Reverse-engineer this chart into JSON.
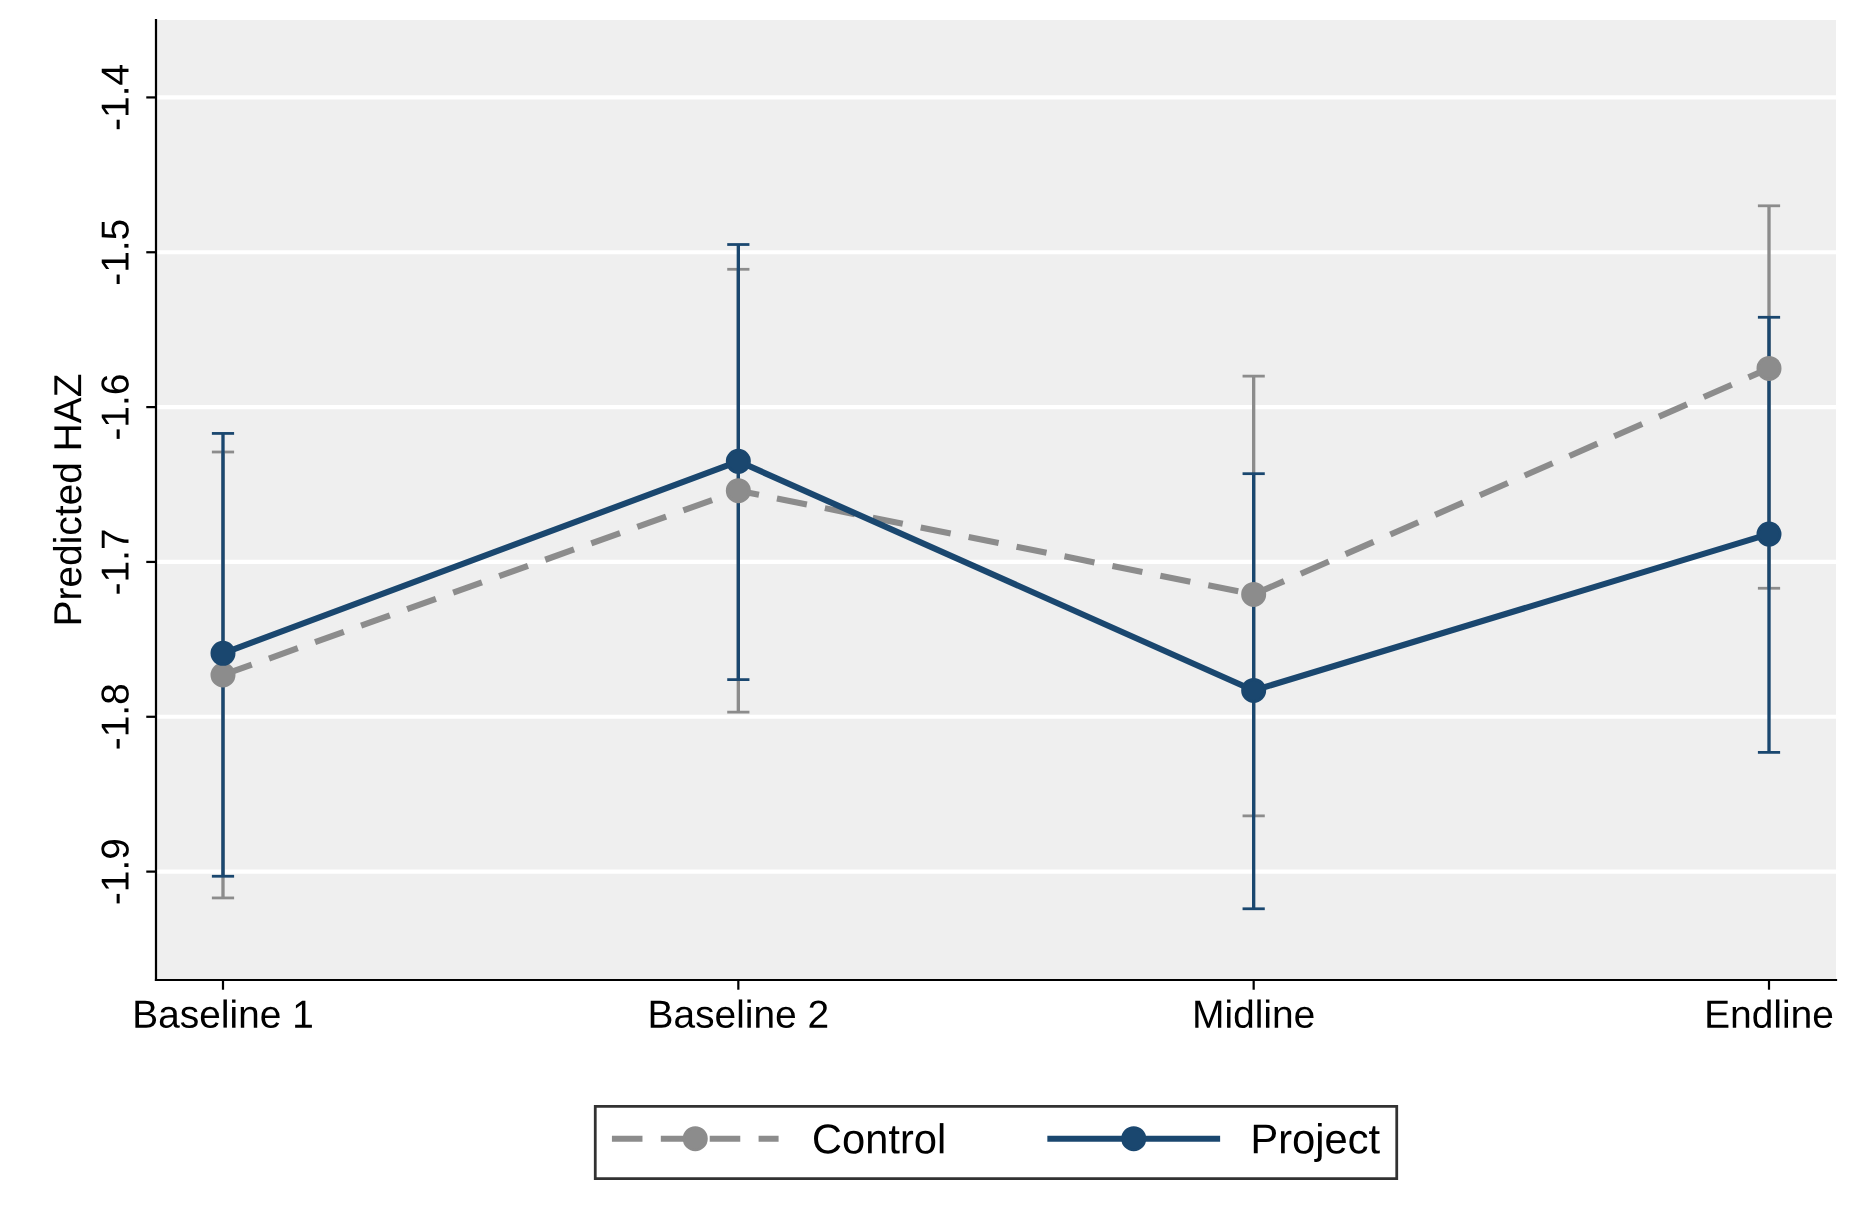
{
  "chart_data": {
    "type": "line",
    "ylabel": "Predicted HAZ",
    "categories": [
      "Baseline 1",
      "Baseline 2",
      "Midline",
      "Endline"
    ],
    "series": [
      {
        "name": "Control",
        "color": "#8c8c8c",
        "line_style": "dashed",
        "values": [
          -1.773,
          -1.654,
          -1.721,
          -1.575
        ],
        "errors": [
          [
            -1.917,
            -1.629
          ],
          [
            -1.797,
            -1.511
          ],
          [
            -1.864,
            -1.58
          ],
          [
            -1.717,
            -1.47
          ]
        ]
      },
      {
        "name": "Project",
        "color": "#1a476f",
        "line_style": "solid",
        "values": [
          -1.759,
          -1.635,
          -1.783,
          -1.682
        ],
        "errors": [
          [
            -1.903,
            -1.617
          ],
          [
            -1.776,
            -1.495
          ],
          [
            -1.924,
            -1.643
          ],
          [
            -1.823,
            -1.542
          ]
        ]
      }
    ],
    "ylim": [
      -1.97,
      -1.35
    ],
    "yticks": [
      -1.9,
      -1.8,
      -1.7,
      -1.6,
      -1.5,
      -1.4
    ],
    "grid": "y",
    "legend": "bottom",
    "marker": "circle"
  }
}
